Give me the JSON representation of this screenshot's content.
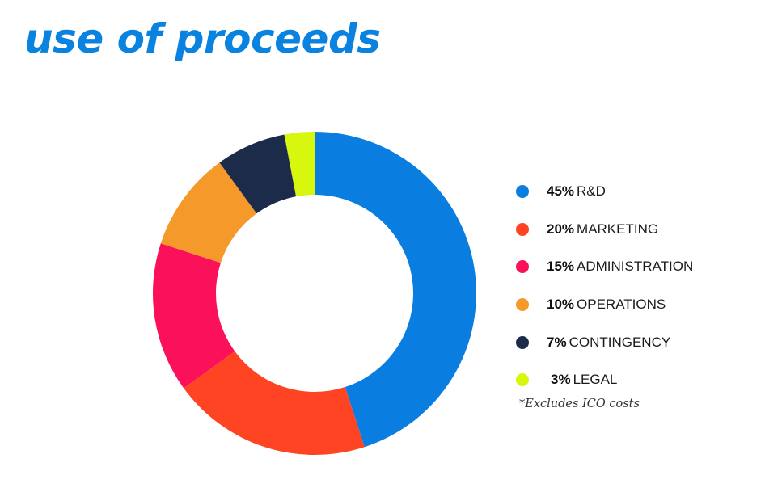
{
  "title": "use of proceeds",
  "chart_data": {
    "type": "pie",
    "style": "donut",
    "categories": [
      "R&D",
      "MARKETING",
      "ADMINISTRATION",
      "OPERATIONS",
      "CONTINGENCY",
      "LEGAL"
    ],
    "values": [
      45,
      20,
      15,
      10,
      7,
      3
    ],
    "value_labels": [
      "45%",
      "20%",
      "15%",
      "10%",
      "7%",
      "3%"
    ],
    "colors": [
      "#0a7ee0",
      "#fe4422",
      "#fb105a",
      "#f4992a",
      "#1c2b4a",
      "#d8f70e"
    ],
    "legend_position": "right"
  },
  "footnote": "*Excludes ICO costs"
}
